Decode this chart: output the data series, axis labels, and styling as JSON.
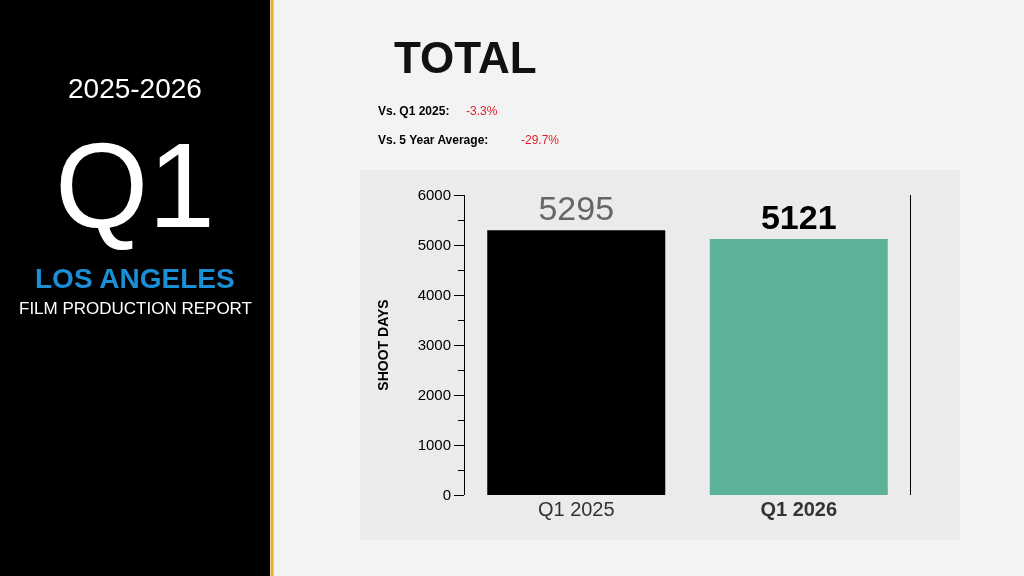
{
  "chart_data": {
    "type": "bar",
    "title": "TOTAL",
    "ylabel": "SHOOT DAYS",
    "categories": [
      "Q1 2025",
      "Q1 2026"
    ],
    "values": [
      5295,
      5121
    ],
    "colors": [
      "#000000",
      "#5cb39a"
    ],
    "ylim": [
      0,
      6000
    ],
    "yticks": [
      0,
      1000,
      2000,
      3000,
      4000,
      5000,
      6000
    ],
    "grid": false,
    "legend": false,
    "data_labels": true,
    "annotations": [
      "2025-2026",
      "Q1",
      "LOS ANGELES",
      "FILM PRODUCTION REPORT",
      "Vs. Q1 2025:",
      "-3.3%",
      "Vs. 5 Year Average:",
      "-29.7%"
    ]
  }
}
